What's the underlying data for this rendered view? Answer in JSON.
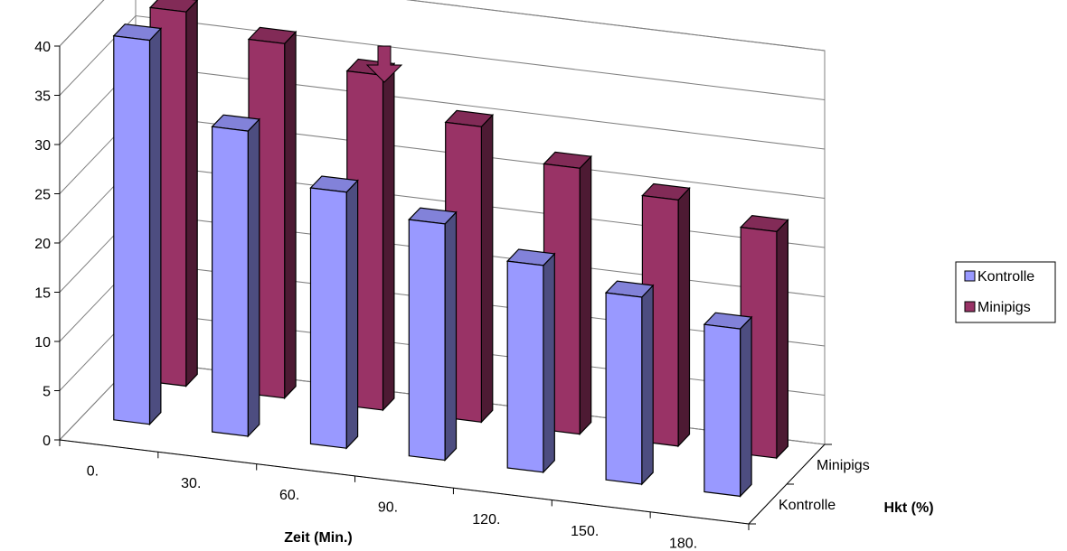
{
  "chart_data": {
    "type": "bar",
    "variant": "3d-clustered-depth",
    "categories": [
      "0.",
      "30.",
      "60.",
      "90.",
      "120.",
      "150.",
      "180."
    ],
    "series": [
      {
        "name": "Kontrolle",
        "values": [
          39,
          31,
          26,
          24,
          21,
          19,
          17
        ],
        "color": "#9999ff"
      },
      {
        "name": "Minipigs",
        "values": [
          38,
          36,
          34,
          30,
          27,
          25,
          23
        ],
        "color": "#993366"
      }
    ],
    "depth_labels": [
      "Kontrolle",
      "Minipigs"
    ],
    "xlabel": "Zeit (Min.)",
    "zlabel": "Hkt (%)",
    "ylim": [
      0,
      40
    ],
    "yticks": [
      0,
      5,
      10,
      15,
      20,
      25,
      30,
      35,
      40
    ],
    "grid": true,
    "legend": {
      "position": "right",
      "entries": [
        "Kontrolle",
        "Minipigs"
      ]
    },
    "annotation": "down-arrow-marker"
  }
}
